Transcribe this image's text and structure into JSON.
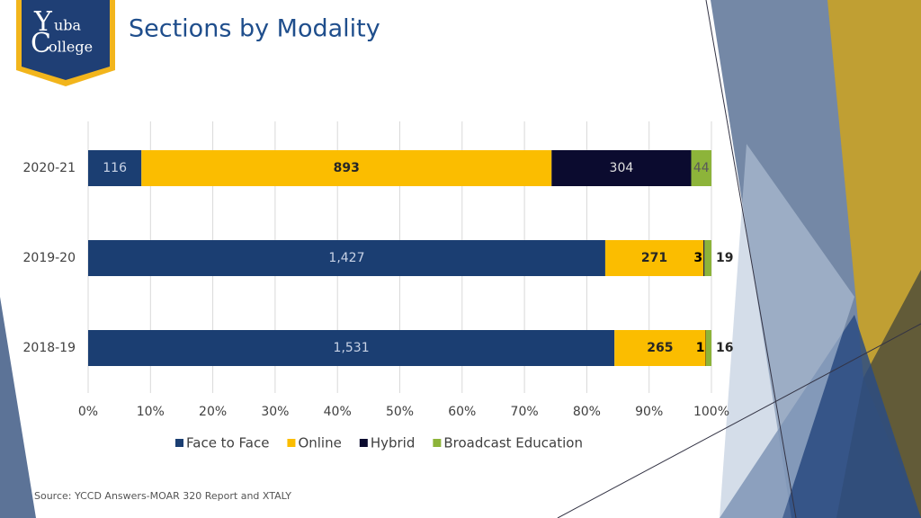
{
  "slide": {
    "logo": [
      "Y",
      "uba",
      "C",
      "ollege"
    ],
    "source": "Source: YCCD Answers-MOAR 320 Report and XTALY"
  },
  "chart_data": {
    "type": "stacked-percent-bar",
    "title": "Sections by Modality",
    "categories": [
      "2020-21",
      "2019-20",
      "2018-19"
    ],
    "series": [
      {
        "name": "Face to Face",
        "color": "#1b3e72",
        "values": [
          116,
          1427,
          1531
        ],
        "value_labels": [
          "116",
          "1,427",
          "1,531"
        ]
      },
      {
        "name": "Online",
        "color": "#fbbd00",
        "values": [
          893,
          271,
          265
        ]
      },
      {
        "name": "Hybrid",
        "color": "#0b0b2f",
        "values": [
          304,
          3,
          1
        ]
      },
      {
        "name": "Broadcast Education",
        "color": "#8db43a",
        "values": [
          44,
          19,
          16
        ]
      }
    ],
    "xlim": [
      0,
      100
    ],
    "xticks": [
      {
        "value": 0,
        "label": "0%"
      },
      {
        "value": 10,
        "label": "10%"
      },
      {
        "value": 20,
        "label": "20%"
      },
      {
        "value": 30,
        "label": "30%"
      },
      {
        "value": 40,
        "label": "40%"
      },
      {
        "value": 50,
        "label": "50%"
      },
      {
        "value": 60,
        "label": "60%"
      },
      {
        "value": 70,
        "label": "70%"
      },
      {
        "value": 80,
        "label": "80%"
      },
      {
        "value": 90,
        "label": "90%"
      },
      {
        "value": 100,
        "label": "100%"
      }
    ],
    "grid": true,
    "legend": "bottom"
  }
}
